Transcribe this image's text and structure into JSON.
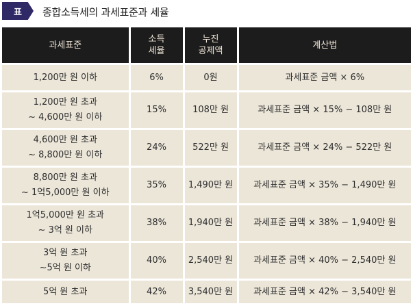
{
  "caption": {
    "tag": "표",
    "title": "종합소득세의 과세표준과 세율"
  },
  "table": {
    "headers": {
      "base": "과세표준",
      "rate_line1": "소득",
      "rate_line2": "세율",
      "deduction_line1": "누진",
      "deduction_line2": "공제액",
      "method": "계산법"
    },
    "rows": [
      {
        "base_line1": "1,200만 원 이하",
        "base_line2": "",
        "rate": "6%",
        "deduction": "0원",
        "method": "과세표준 금액 × 6%"
      },
      {
        "base_line1": "1,200만 원 초과",
        "base_line2": "~ 4,600만 원 이하",
        "rate": "15%",
        "deduction": "108만 원",
        "method": "과세표준 금액 × 15% − 108만 원"
      },
      {
        "base_line1": "4,600만 원 초과",
        "base_line2": "~ 8,800만 원 이하",
        "rate": "24%",
        "deduction": "522만 원",
        "method": "과세표준 금액 × 24% − 522만 원"
      },
      {
        "base_line1": "8,800만 원 초과",
        "base_line2": "~ 1억5,000만 원 이하",
        "rate": "35%",
        "deduction": "1,490만 원",
        "method": "과세표준 금액 × 35% − 1,490만 원"
      },
      {
        "base_line1": "1억5,000만 원 초과",
        "base_line2": "~ 3억 원 이하",
        "rate": "38%",
        "deduction": "1,940만 원",
        "method": "과세표준 금액 × 38% − 1,940만 원"
      },
      {
        "base_line1": "3억 원 초과",
        "base_line2": "~5억 원 이하",
        "rate": "40%",
        "deduction": "2,540만 원",
        "method": "과세표준 금액 × 40% − 2,540만 원"
      },
      {
        "base_line1": "5억 원 초과",
        "base_line2": "",
        "rate": "42%",
        "deduction": "3,540만 원",
        "method": "과세표준 금액 × 42% − 3,540만 원"
      }
    ]
  }
}
